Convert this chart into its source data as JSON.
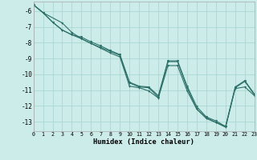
{
  "xlabel": "Humidex (Indice chaleur)",
  "background_color": "#ccecea",
  "grid_color": "#aad8d4",
  "line_color": "#2d7068",
  "xlim": [
    0,
    23
  ],
  "ylim": [
    -13.6,
    -5.4
  ],
  "xticks": [
    0,
    1,
    2,
    3,
    4,
    5,
    6,
    7,
    8,
    9,
    10,
    11,
    12,
    13,
    14,
    15,
    16,
    17,
    18,
    19,
    20,
    21,
    22,
    23
  ],
  "yticks": [
    -6,
    -7,
    -8,
    -9,
    -10,
    -11,
    -12,
    -13
  ],
  "line1_x": [
    0,
    1,
    2,
    3,
    4,
    5,
    6,
    7,
    8,
    9,
    10,
    11,
    12,
    13,
    14,
    15,
    16,
    17,
    18,
    19,
    20,
    21,
    22,
    23
  ],
  "line1_y": [
    -5.6,
    -6.1,
    -6.7,
    -7.2,
    -7.5,
    -7.75,
    -8.05,
    -8.3,
    -8.55,
    -8.8,
    -10.55,
    -10.8,
    -10.85,
    -11.45,
    -9.2,
    -9.2,
    -10.85,
    -12.2,
    -12.75,
    -13.05,
    -13.3,
    -10.85,
    -10.45,
    -11.3
  ],
  "line2_x": [
    0,
    1,
    3,
    4,
    5,
    6,
    7,
    8,
    9,
    10,
    11,
    12,
    13,
    14,
    15,
    16,
    17,
    18,
    19,
    20,
    21,
    22,
    23
  ],
  "line2_y": [
    -5.6,
    -6.1,
    -6.75,
    -7.35,
    -7.75,
    -8.05,
    -8.35,
    -8.65,
    -8.9,
    -10.75,
    -10.85,
    -11.05,
    -11.5,
    -9.45,
    -9.45,
    -11.05,
    -12.2,
    -12.8,
    -13.05,
    -13.35,
    -10.9,
    -10.8,
    -11.35
  ],
  "line3_x": [
    0,
    1,
    2,
    3,
    4,
    5,
    6,
    7,
    8,
    9,
    10,
    11,
    12,
    13,
    14,
    15,
    16,
    17,
    18,
    19,
    20,
    21,
    22,
    23
  ],
  "line3_y": [
    -5.6,
    -6.1,
    -6.7,
    -7.2,
    -7.5,
    -7.65,
    -7.95,
    -8.2,
    -8.5,
    -8.75,
    -10.5,
    -10.75,
    -10.8,
    -11.35,
    -9.15,
    -9.15,
    -10.75,
    -12.05,
    -12.7,
    -12.95,
    -13.3,
    -10.8,
    -10.4,
    -11.25
  ]
}
